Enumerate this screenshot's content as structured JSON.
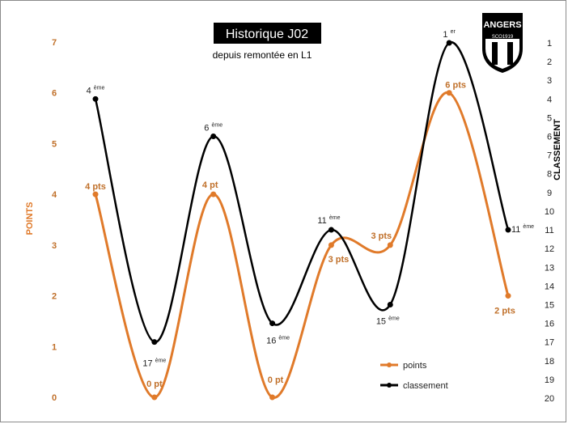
{
  "chart_data": {
    "type": "line",
    "title": "Historique J02",
    "subtitle": "depuis remontée en L1",
    "left_axis": {
      "label": "POINTS",
      "ticks": [
        "0",
        "1",
        "2",
        "3",
        "4",
        "5",
        "6",
        "7"
      ],
      "range": [
        0,
        7
      ]
    },
    "right_axis": {
      "label": "CLASSEMENT",
      "ticks": [
        "1",
        "2",
        "3",
        "4",
        "5",
        "6",
        "7",
        "8",
        "9",
        "10",
        "11",
        "12",
        "13",
        "14",
        "15",
        "16",
        "17",
        "18",
        "19",
        "20"
      ],
      "range": [
        1,
        20
      ],
      "inverted": true
    },
    "series": [
      {
        "name": "points",
        "color": "#e07a2a",
        "axis": "left",
        "values": [
          4,
          0,
          4,
          0,
          3,
          3,
          6,
          2
        ],
        "labels": [
          "4 pts",
          "0 pt",
          "4 pt",
          "0 pt",
          "3 pts",
          "3 pts",
          "6 pts",
          "2 pts"
        ]
      },
      {
        "name": "classement",
        "color": "#000000",
        "axis": "right",
        "values": [
          4,
          17,
          6,
          16,
          11,
          15,
          1,
          11
        ],
        "labels": [
          "4",
          "17",
          "6",
          "16",
          "11",
          "15",
          "1",
          "11"
        ],
        "label_suffixes": [
          "ème",
          "ème",
          "ème",
          "ème",
          "ème",
          "ème",
          "er",
          "ème"
        ]
      }
    ],
    "legend": {
      "position": "bottom-right",
      "items": [
        "points",
        "classement"
      ]
    },
    "grid": false
  },
  "logo": {
    "text": "ANGERS",
    "subtext": "SCO1919"
  }
}
